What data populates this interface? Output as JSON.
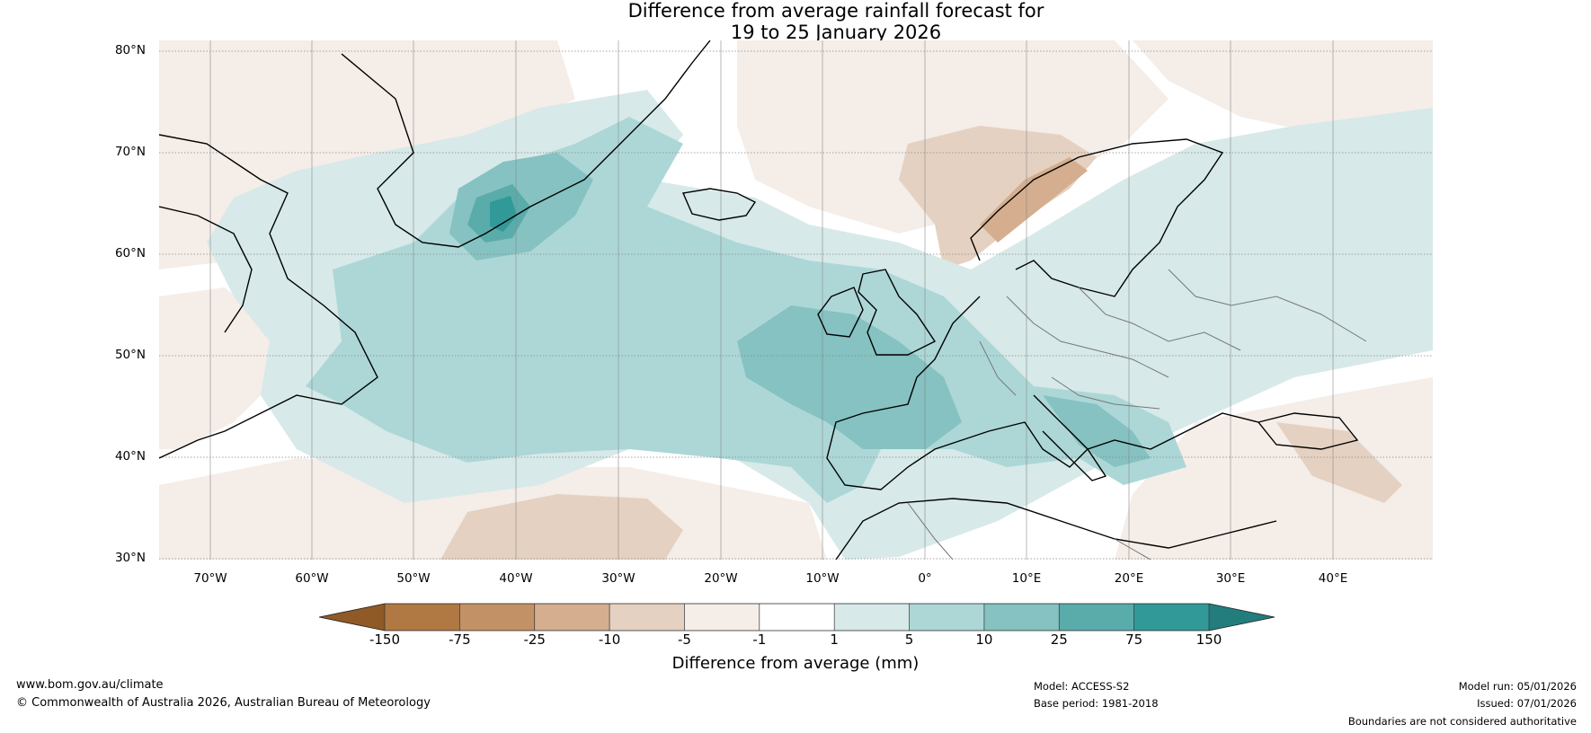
{
  "title": {
    "line1": "Difference from average rainfall forecast for",
    "line2": "19 to 25 January 2026"
  },
  "map": {
    "region": "North Atlantic and Europe",
    "lat_labels": [
      "80°N",
      "70°N",
      "60°N",
      "50°N",
      "40°N",
      "30°N"
    ],
    "lon_labels": [
      "70°W",
      "60°W",
      "50°W",
      "40°W",
      "30°W",
      "20°W",
      "10°W",
      "0°",
      "10°E",
      "20°E",
      "30°E",
      "40°E"
    ],
    "lat_range": [
      30,
      81
    ],
    "lon_range": [
      -75,
      50
    ]
  },
  "colorbar": {
    "ticks": [
      "-150",
      "-75",
      "-25",
      "-10",
      "-5",
      "-1",
      "1",
      "5",
      "10",
      "25",
      "75",
      "150"
    ],
    "colors": [
      "#8f5a26",
      "#b07843",
      "#c29266",
      "#d4ae8e",
      "#e5d1c1",
      "#f4ede8",
      "#ffffff",
      "#d7e9e9",
      "#add7d7",
      "#85c2c1",
      "#5aacab",
      "#319a99",
      "#237d7c"
    ],
    "label": "Difference from average (mm)"
  },
  "footer": {
    "website": "www.bom.gov.au/climate",
    "copyright": "© Commonwealth of Australia 2026, Australian Bureau of Meteorology",
    "model": "Model: ACCESS-S2",
    "base_period": "Base period: 1981-2018",
    "model_run": "Model run: 05/01/2026",
    "issued": "Issued: 07/01/2026",
    "disclaimer": "Boundaries are not considered authoritative"
  }
}
